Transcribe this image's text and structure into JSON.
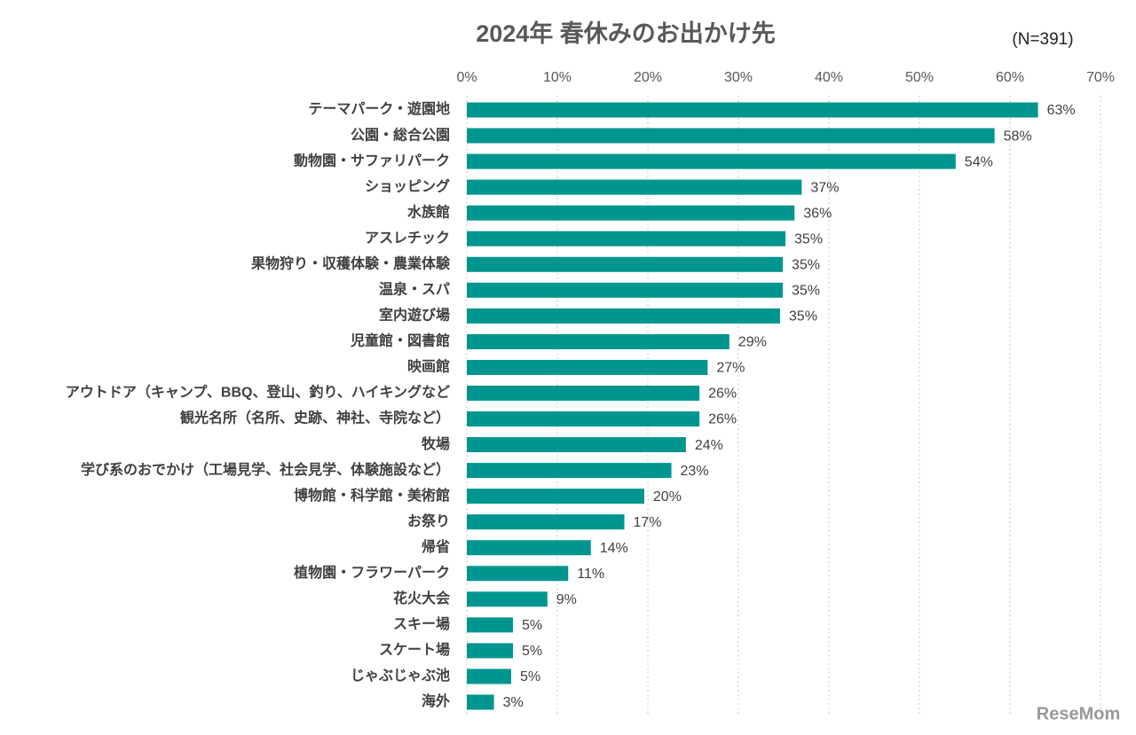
{
  "chart_data": {
    "type": "bar",
    "orientation": "horizontal",
    "title": "2024年 春休みのお出かけ先",
    "annotation": "(N=391)",
    "watermark": "ReseMom",
    "categories": [
      "テーマパーク・遊園地",
      "公園・総合公園",
      "動物園・サファリパーク",
      "ショッピング",
      "水族館",
      "アスレチック",
      "果物狩り・収穫体験・農業体験",
      "温泉・スパ",
      "室内遊び場",
      "児童館・図書館",
      "映画館",
      "アウトドア（キャンプ、BBQ、登山、釣り、ハイキングなど",
      "観光名所（名所、史跡、神社、寺院など）",
      "牧場",
      "学び系のおでかけ（工場見学、社会見学、体験施設など）",
      "博物館・科学館・美術館",
      "お祭り",
      "帰省",
      "植物園・フラワーパーク",
      "花火大会",
      "スキー場",
      "スケート場",
      "じゃぶじゃぶ池",
      "海外"
    ],
    "values": [
      63.1,
      58.3,
      54.0,
      37.0,
      36.2,
      35.2,
      34.9,
      34.9,
      34.6,
      29.0,
      26.6,
      25.7,
      25.7,
      24.2,
      22.6,
      19.6,
      17.4,
      13.7,
      11.2,
      8.9,
      5.1,
      5.1,
      4.9,
      3.0
    ],
    "value_labels": [
      "63%",
      "58%",
      "54%",
      "37%",
      "36%",
      "35%",
      "35%",
      "35%",
      "35%",
      "29%",
      "27%",
      "26%",
      "26%",
      "24%",
      "23%",
      "20%",
      "17%",
      "14%",
      "11%",
      "9%",
      "5%",
      "5%",
      "5%",
      "3%"
    ],
    "color": "#00968f",
    "xlim": [
      0,
      70
    ],
    "xticks": [
      {
        "value": 0,
        "label": "0%"
      },
      {
        "value": 10,
        "label": "10%"
      },
      {
        "value": 20,
        "label": "20%"
      },
      {
        "value": 30,
        "label": "30%"
      },
      {
        "value": 40,
        "label": "40%"
      },
      {
        "value": 50,
        "label": "50%"
      },
      {
        "value": 60,
        "label": "60%"
      },
      {
        "value": 70,
        "label": "70%"
      }
    ],
    "grid": true
  }
}
